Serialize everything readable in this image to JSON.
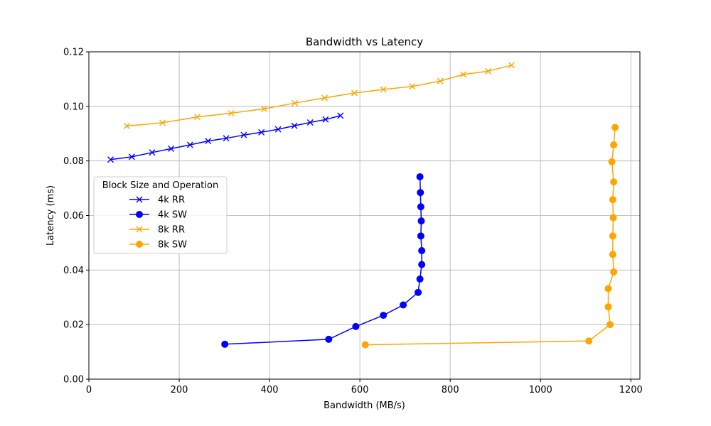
{
  "chart_data": {
    "type": "line",
    "title": "Bandwidth vs Latency",
    "xlabel": "Bandwidth (MB/s)",
    "ylabel": "Latency (ms)",
    "xlim": [
      0,
      1220
    ],
    "ylim": [
      0,
      0.12
    ],
    "xticks": [
      0,
      200,
      400,
      600,
      800,
      1000,
      1200
    ],
    "yticks": [
      0.0,
      0.02,
      0.04,
      0.06,
      0.08,
      0.1,
      0.12
    ],
    "xtick_labels": [
      "0",
      "200",
      "400",
      "600",
      "800",
      "1000",
      "1200"
    ],
    "ytick_labels": [
      "0.00",
      "0.02",
      "0.04",
      "0.06",
      "0.08",
      "0.10",
      "0.12"
    ],
    "grid": true,
    "legend": {
      "title": "Block Size and Operation",
      "placement": "center-left"
    },
    "series": [
      {
        "name": "4k RR",
        "color": "#0000ff",
        "marker": "x",
        "points": [
          [
            48,
            0.0805
          ],
          [
            95,
            0.0815
          ],
          [
            140,
            0.0831
          ],
          [
            182,
            0.0845
          ],
          [
            224,
            0.0859
          ],
          [
            264,
            0.0873
          ],
          [
            304,
            0.0883
          ],
          [
            343,
            0.0895
          ],
          [
            382,
            0.0905
          ],
          [
            419,
            0.0916
          ],
          [
            455,
            0.0929
          ],
          [
            490,
            0.0941
          ],
          [
            524,
            0.0952
          ],
          [
            557,
            0.0966
          ]
        ]
      },
      {
        "name": "4k SW",
        "color": "#0000ff",
        "marker": "o",
        "points": [
          [
            301,
            0.0128
          ],
          [
            531,
            0.0146
          ],
          [
            591,
            0.0193
          ],
          [
            652,
            0.0234
          ],
          [
            696,
            0.0272
          ],
          [
            729,
            0.0318
          ],
          [
            733,
            0.0367
          ],
          [
            737,
            0.042
          ],
          [
            737,
            0.0471
          ],
          [
            735,
            0.0525
          ],
          [
            736,
            0.058
          ],
          [
            735,
            0.0632
          ],
          [
            734,
            0.0684
          ],
          [
            733,
            0.0742
          ]
        ]
      },
      {
        "name": "8k RR",
        "color": "#ffa500",
        "marker": "x",
        "points": [
          [
            84,
            0.0928
          ],
          [
            163,
            0.094
          ],
          [
            240,
            0.0961
          ],
          [
            315,
            0.0975
          ],
          [
            388,
            0.0991
          ],
          [
            456,
            0.1012
          ],
          [
            522,
            0.1031
          ],
          [
            588,
            0.1049
          ],
          [
            652,
            0.1062
          ],
          [
            716,
            0.1073
          ],
          [
            778,
            0.1093
          ],
          [
            829,
            0.1117
          ],
          [
            884,
            0.1129
          ],
          [
            936,
            0.1151
          ]
        ]
      },
      {
        "name": "8k SW",
        "color": "#ffa500",
        "marker": "o",
        "points": [
          [
            612,
            0.0126
          ],
          [
            1107,
            0.014
          ],
          [
            1154,
            0.02
          ],
          [
            1150,
            0.0265
          ],
          [
            1150,
            0.0332
          ],
          [
            1162,
            0.0393
          ],
          [
            1160,
            0.0457
          ],
          [
            1160,
            0.0525
          ],
          [
            1161,
            0.0592
          ],
          [
            1160,
            0.0658
          ],
          [
            1162,
            0.0723
          ],
          [
            1158,
            0.0797
          ],
          [
            1162,
            0.0859
          ],
          [
            1165,
            0.0923
          ]
        ]
      }
    ]
  }
}
